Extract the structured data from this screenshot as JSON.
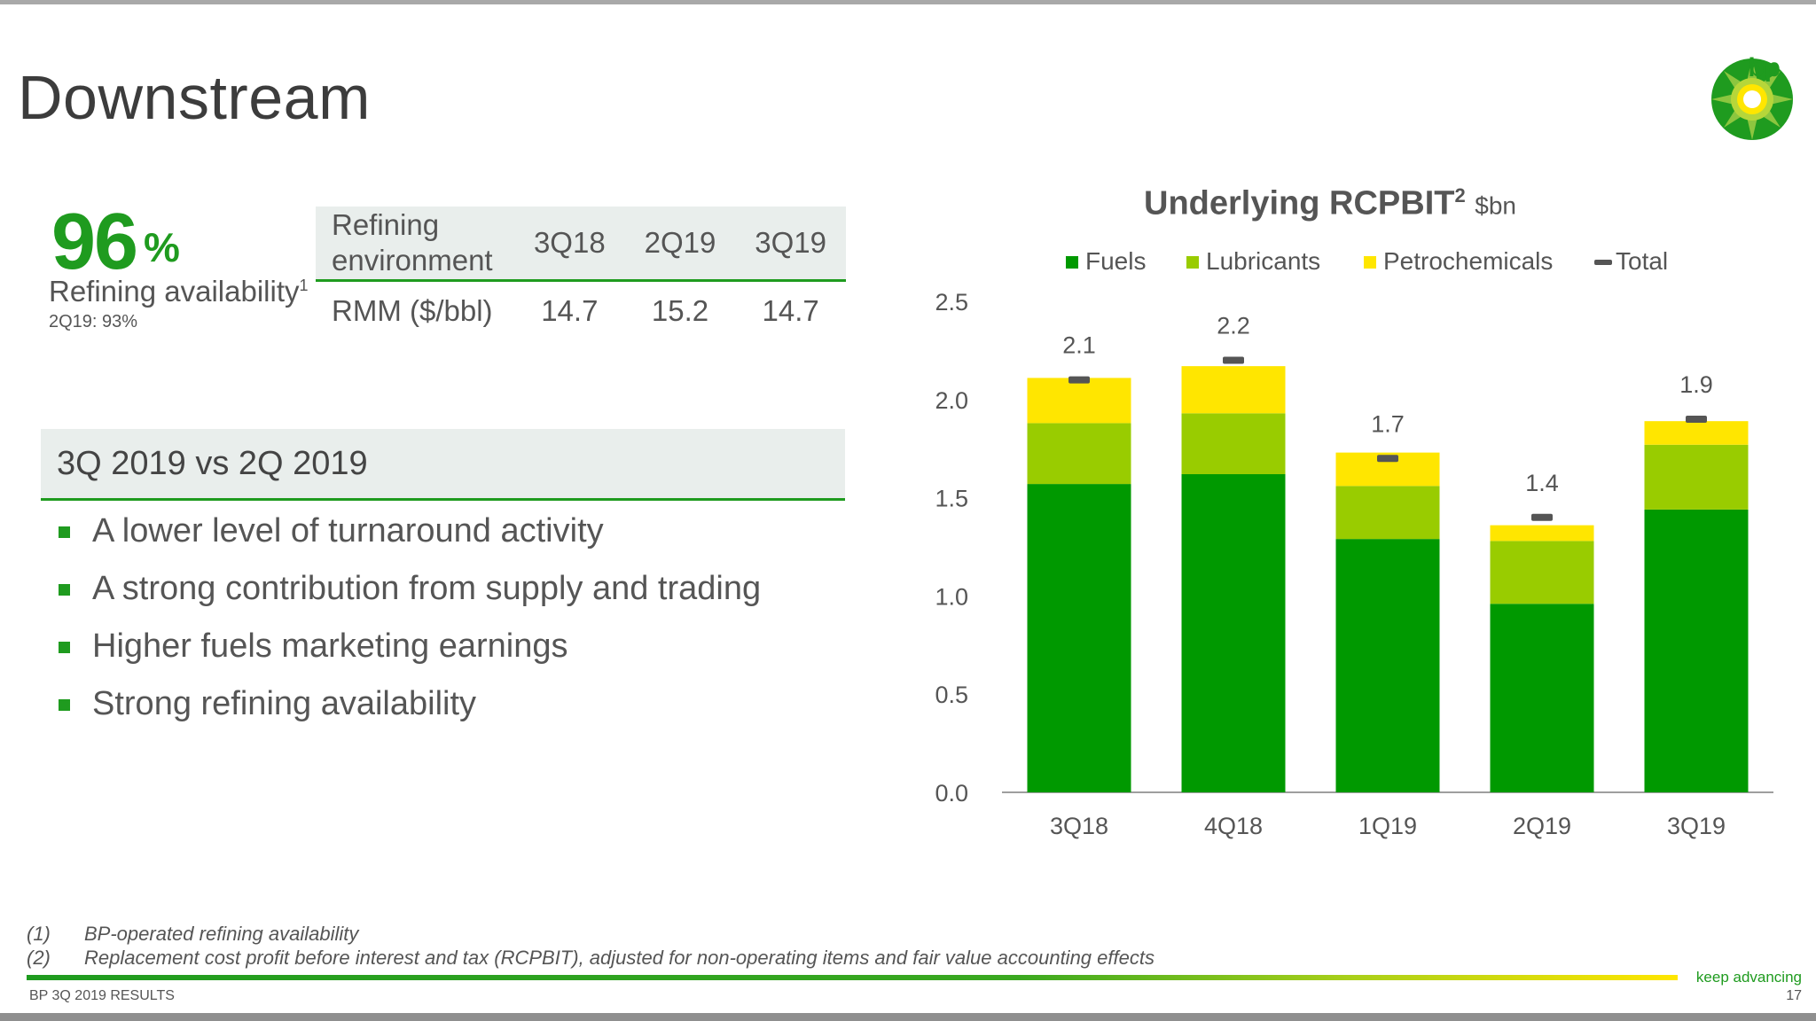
{
  "page": {
    "title": "Downstream",
    "logo_text": "bp",
    "footer_left": "BP 3Q 2019 RESULTS",
    "tagline": "keep advancing",
    "page_number": "17"
  },
  "kpi": {
    "value": "96",
    "unit": "%",
    "label": "Refining availability",
    "label_sup": "1",
    "sub": "2Q19: 93%"
  },
  "refining_table": {
    "header": [
      "Refining environment",
      "3Q18",
      "2Q19",
      "3Q19"
    ],
    "rows": [
      [
        "RMM ($/bbl)",
        "14.7",
        "15.2",
        "14.7"
      ]
    ]
  },
  "comparison": {
    "title": "3Q 2019 vs 2Q 2019",
    "bullets": [
      "A lower level of turnaround activity",
      "A strong contribution from supply and trading",
      "Higher fuels marketing earnings",
      "Strong refining availability"
    ]
  },
  "chart_data": {
    "type": "bar",
    "stacked": true,
    "title": "Underlying RCPBIT",
    "title_sup": "2",
    "unit": "$bn",
    "categories": [
      "3Q18",
      "4Q18",
      "1Q19",
      "2Q19",
      "3Q19"
    ],
    "series": [
      {
        "name": "Fuels",
        "color": "#009900",
        "values": [
          1.57,
          1.62,
          1.29,
          0.96,
          1.44
        ]
      },
      {
        "name": "Lubricants",
        "color": "#99cc00",
        "values": [
          0.31,
          0.31,
          0.27,
          0.32,
          0.33
        ]
      },
      {
        "name": "Petrochemicals",
        "color": "#ffe600",
        "values": [
          0.23,
          0.24,
          0.17,
          0.08,
          0.12
        ]
      }
    ],
    "total": {
      "name": "Total",
      "color": "#555555",
      "values": [
        2.1,
        2.2,
        1.7,
        1.4,
        1.9
      ],
      "labels": [
        "2.1",
        "2.2",
        "1.7",
        "1.4",
        "1.9"
      ]
    },
    "yticks": [
      "0.0",
      "0.5",
      "1.0",
      "1.5",
      "2.0",
      "2.5"
    ],
    "ylim": [
      0,
      2.5
    ],
    "legend_position": "top",
    "grid": false
  },
  "footnotes": [
    {
      "num": "(1)",
      "text": "BP-operated refining availability"
    },
    {
      "num": "(2)",
      "text": "Replacement cost profit before interest and tax (RCPBIT), adjusted for non-operating items and fair value accounting effects"
    }
  ]
}
